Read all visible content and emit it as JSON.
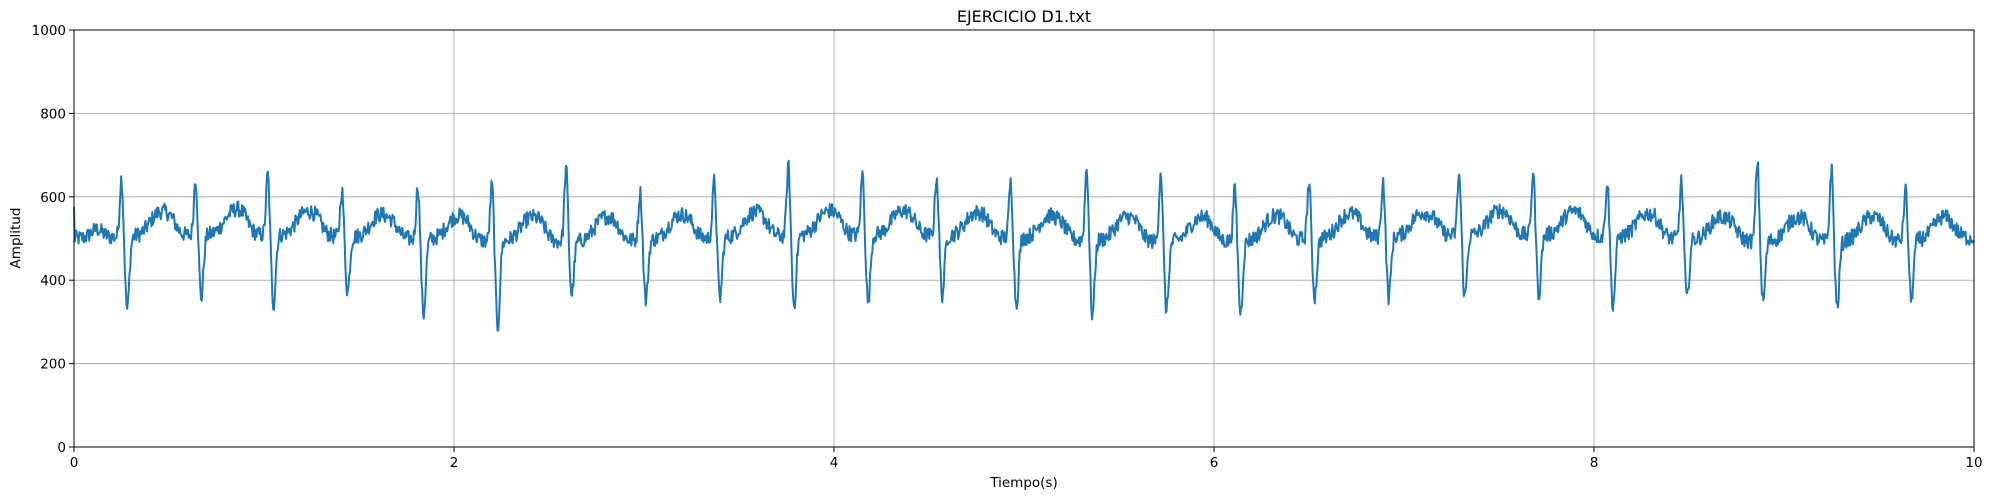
{
  "chart_data": {
    "type": "line",
    "title": "EJERCICIO D1.txt",
    "xlabel": "Tiempo(s)",
    "ylabel": "Amplitud",
    "xlim": [
      0,
      10
    ],
    "ylim": [
      0,
      1000
    ],
    "xticks": [
      0,
      2,
      4,
      6,
      8,
      10
    ],
    "yticks": [
      0,
      200,
      400,
      600,
      800,
      1000
    ],
    "xtick_labels": [
      "0",
      "2",
      "4",
      "6",
      "8",
      "10"
    ],
    "ytick_labels": [
      "0",
      "200",
      "400",
      "600",
      "800",
      "1000"
    ],
    "grid": true,
    "line_color": "#1f77b4",
    "baseline": 500,
    "beat_times": [
      0.25,
      0.64,
      1.02,
      1.41,
      1.81,
      2.2,
      2.59,
      2.98,
      3.37,
      3.76,
      4.15,
      4.54,
      4.93,
      5.33,
      5.72,
      6.11,
      6.5,
      6.89,
      7.29,
      7.68,
      8.07,
      8.46,
      8.86,
      9.25,
      9.64
    ],
    "beat_peaks": [
      645,
      640,
      650,
      615,
      632,
      640,
      680,
      620,
      640,
      672,
      652,
      645,
      637,
      678,
      672,
      628,
      640,
      638,
      650,
      655,
      637,
      640,
      695,
      678,
      625
    ],
    "beat_troughs": [
      325,
      350,
      333,
      368,
      320,
      292,
      372,
      355,
      355,
      333,
      338,
      358,
      340,
      320,
      333,
      328,
      362,
      355,
      350,
      358,
      335,
      355,
      355,
      342,
      358
    ]
  }
}
